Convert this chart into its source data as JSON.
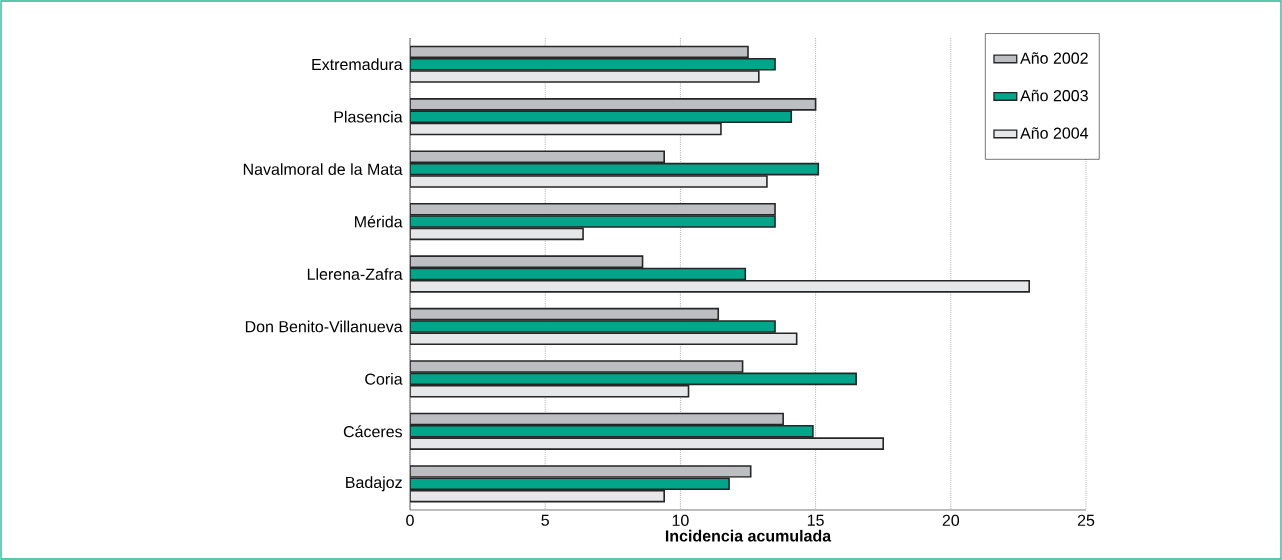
{
  "chart_data": {
    "type": "bar",
    "orientation": "horizontal",
    "categories": [
      "Extremadura",
      "Plasencia",
      "Navalmoral de la Mata",
      "Mérida",
      "Llerena-Zafra",
      "Don Benito-Villanueva",
      "Coria",
      "Cáceres",
      "Badajoz"
    ],
    "series": [
      {
        "name": "Año 2002",
        "color": "#bdbec2",
        "values": [
          12.5,
          15.0,
          9.4,
          13.5,
          8.6,
          11.4,
          12.3,
          13.8,
          12.6
        ]
      },
      {
        "name": "Año 2003",
        "color": "#00a58a",
        "values": [
          13.5,
          14.1,
          15.1,
          13.5,
          12.4,
          13.5,
          16.5,
          14.9,
          11.8
        ]
      },
      {
        "name": "Año 2004",
        "color": "#e6e7e8",
        "values": [
          12.9,
          11.5,
          13.2,
          6.4,
          22.9,
          14.3,
          10.3,
          17.5,
          9.4
        ]
      }
    ],
    "xlabel": "Incidencia acumulada",
    "xlim": [
      0,
      25
    ],
    "xticks": [
      0,
      5,
      10,
      15,
      20,
      25
    ],
    "grid": "x",
    "legend": "top right"
  }
}
